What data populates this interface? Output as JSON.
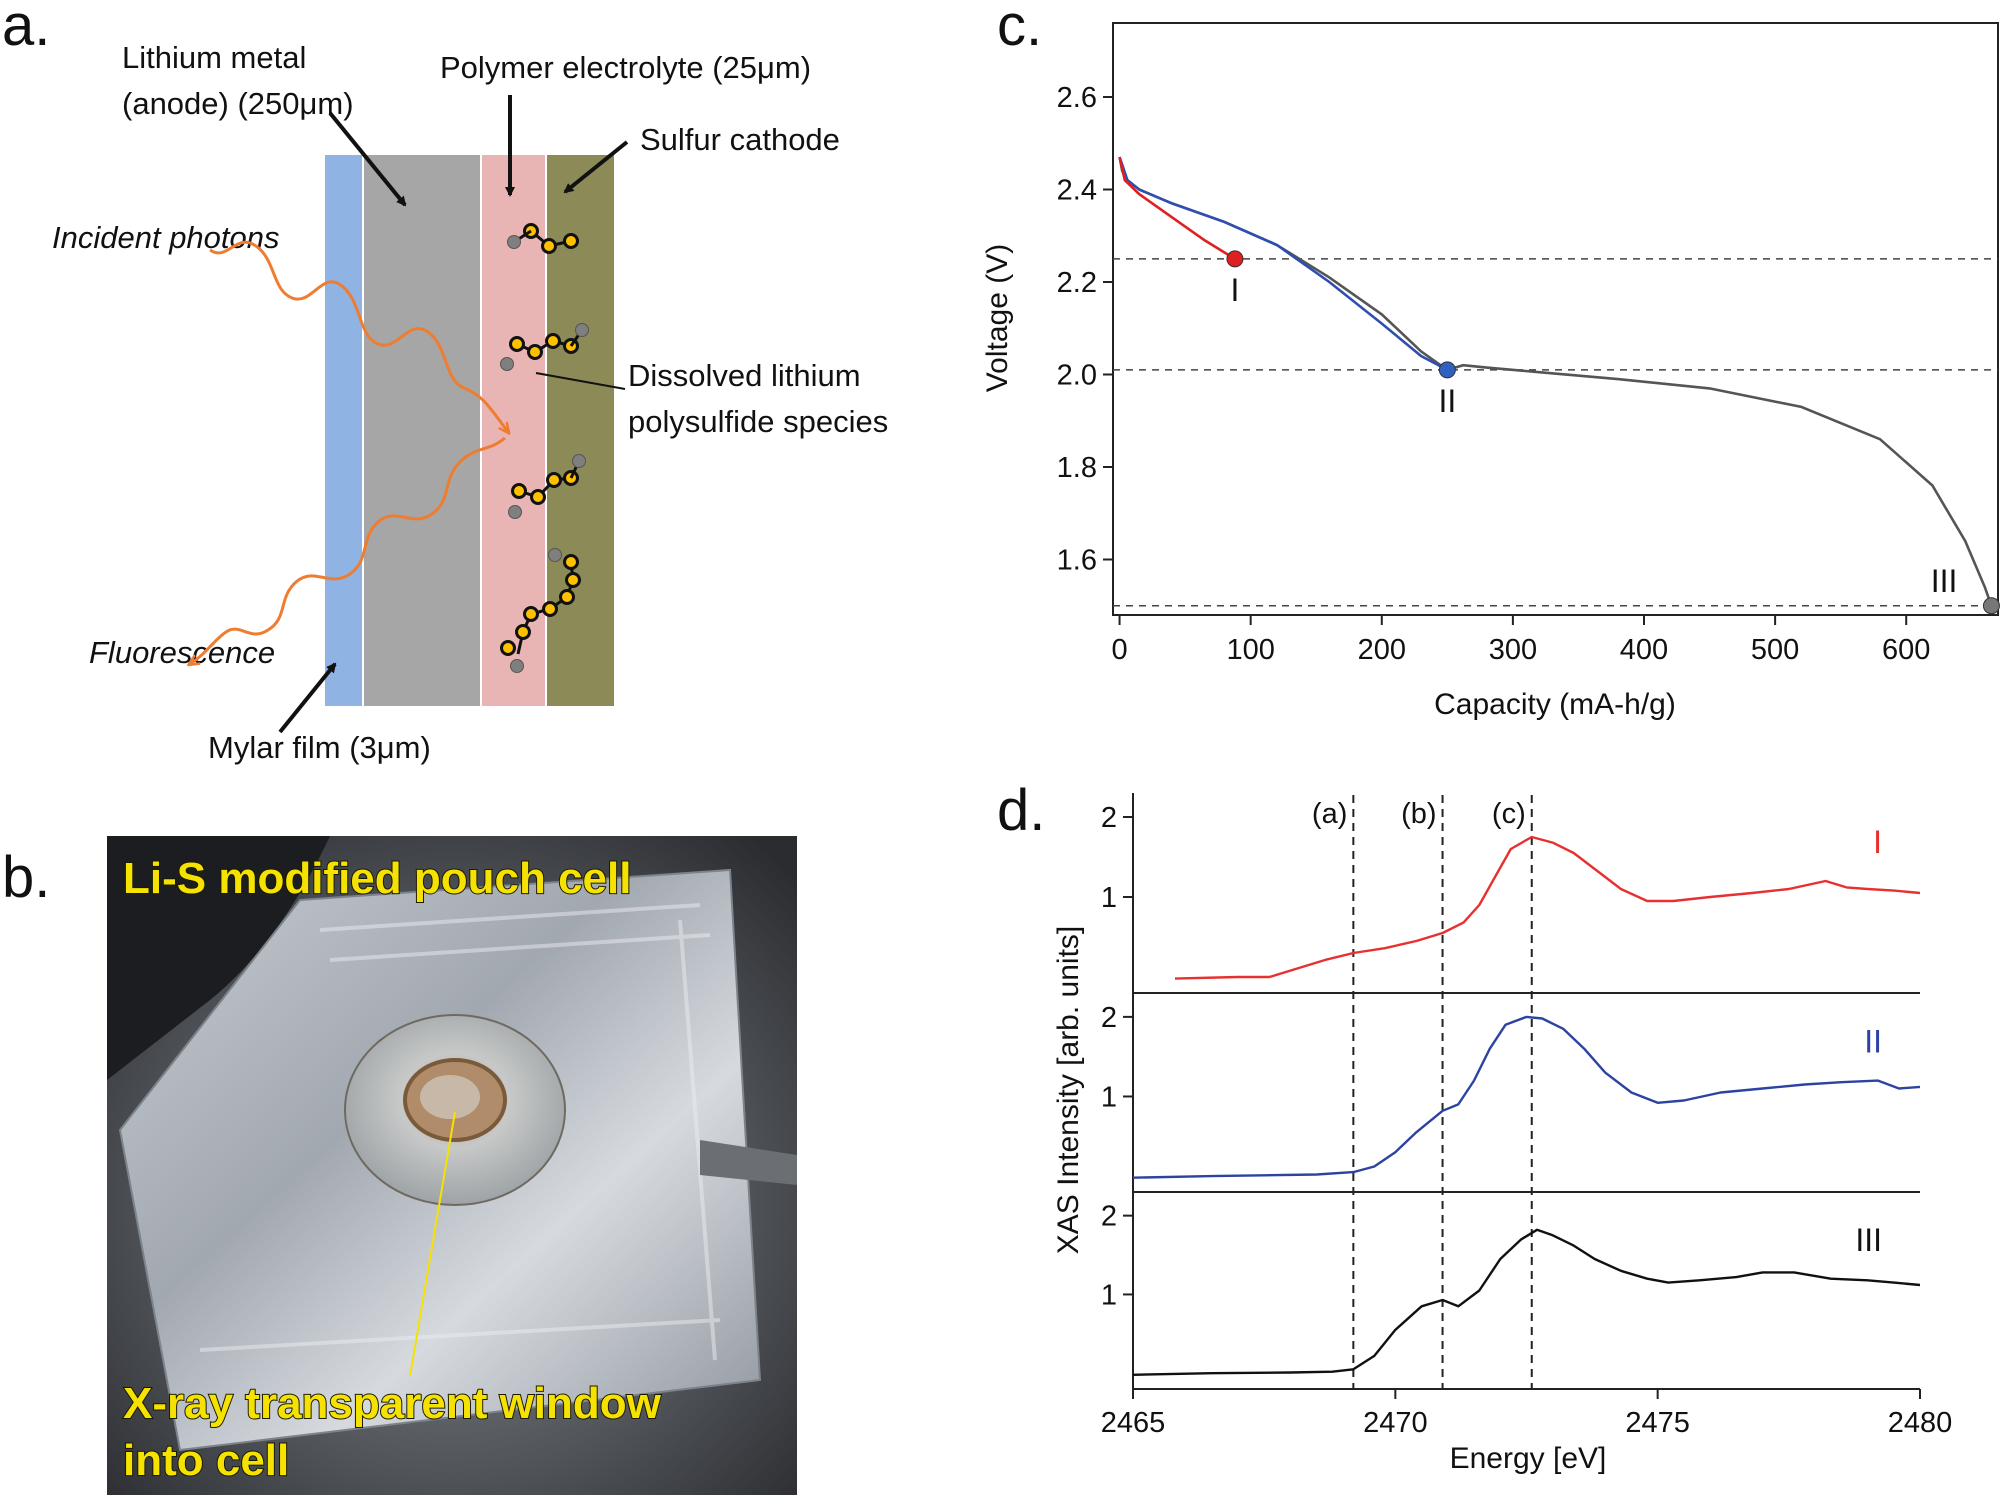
{
  "panel_a": {
    "letter": "a.",
    "anode_label_line1": "Lithium metal",
    "anode_label_line2": "(anode) (250μm)",
    "electrolyte_label": "Polymer electrolyte (25μm)",
    "cathode_label": "Sulfur cathode",
    "incident_label": "Incident photons",
    "polysulfide_line1": "Dissolved lithium",
    "polysulfide_line2": "polysulfide species",
    "fluorescence_label": "Fluorescence",
    "mylar_label": "Mylar film (3μm)",
    "colors": {
      "mylar": "#8fb4e3",
      "anode": "#a6a6a6",
      "electrolyte": "#e8b4b4",
      "cathode": "#8c8a57",
      "photon": "#ee7d31",
      "sulfur": "#ffc000",
      "lithium": "#7f7f7f"
    }
  },
  "panel_b": {
    "letter": "b.",
    "title": "Li-S modified pouch cell",
    "window_line1": "X-ray transparent window",
    "window_line2": "into cell"
  },
  "chart_data": [
    {
      "panel": "c.",
      "type": "line",
      "xlabel": "Capacity (mA-h/g)",
      "ylabel": "Voltage (V)",
      "xlim": [
        -5,
        670
      ],
      "ylim": [
        1.48,
        2.76
      ],
      "xticks": [
        "0",
        "100",
        "200",
        "300",
        "400",
        "500",
        "600"
      ],
      "yticks": [
        "1.6",
        "1.8",
        "2.0",
        "2.2",
        "2.4",
        "2.6"
      ],
      "reference_lines_y": [
        2.25,
        2.01,
        1.5
      ],
      "series": [
        {
          "color": "#555555",
          "x": [
            0,
            2,
            6,
            15,
            40,
            80,
            120,
            160,
            200,
            230,
            250,
            262,
            280,
            320,
            380,
            450,
            520,
            580,
            620,
            645,
            660,
            665
          ],
          "y": [
            2.47,
            2.44,
            2.42,
            2.4,
            2.37,
            2.33,
            2.28,
            2.21,
            2.13,
            2.05,
            2.01,
            2.02,
            2.015,
            2.005,
            1.99,
            1.97,
            1.93,
            1.86,
            1.76,
            1.64,
            1.54,
            1.5
          ]
        },
        {
          "color": "#2f4fb0",
          "x": [
            0,
            6,
            15,
            40,
            80,
            120,
            160,
            200,
            230,
            250
          ],
          "y": [
            2.47,
            2.42,
            2.4,
            2.37,
            2.33,
            2.28,
            2.2,
            2.11,
            2.04,
            2.01
          ]
        },
        {
          "color": "#e02020",
          "x": [
            0,
            4,
            15,
            40,
            65,
            88
          ],
          "y": [
            2.47,
            2.42,
            2.39,
            2.34,
            2.29,
            2.25
          ]
        }
      ],
      "points": [
        {
          "label": "I",
          "x": 88,
          "y": 2.25,
          "color": "#e02020"
        },
        {
          "label": "II",
          "x": 250,
          "y": 2.01,
          "color": "#3060c0"
        },
        {
          "label": "III",
          "x": 665,
          "y": 1.5,
          "color": "#777777"
        }
      ]
    },
    {
      "panel": "d.",
      "type": "line",
      "xlabel": "Energy [eV]",
      "ylabel": "XAS Intensity [arb. units]",
      "xlim": [
        2465,
        2480
      ],
      "xticks": [
        "2465",
        "2470",
        "2475",
        "2480"
      ],
      "yticks": [
        "1",
        "2"
      ],
      "sub_ylim": [
        -0.2,
        2.3
      ],
      "reference_lines_x": [
        2469.2,
        2470.9,
        2472.6
      ],
      "reference_labels": [
        "(a)",
        "(b)",
        "(c)"
      ],
      "series": [
        {
          "name": "I",
          "color": "#e83030",
          "x": [
            2465.8,
            2467.0,
            2467.6,
            2468.2,
            2468.7,
            2469.2,
            2469.8,
            2470.4,
            2470.9,
            2471.3,
            2471.6,
            2471.9,
            2472.2,
            2472.6,
            2473.0,
            2473.4,
            2473.8,
            2474.3,
            2474.8,
            2475.3,
            2476.0,
            2476.8,
            2477.5,
            2478.2,
            2478.6,
            2479.0,
            2479.5,
            2480.0
          ],
          "y": [
            -0.02,
            0.0,
            0.0,
            0.12,
            0.22,
            0.3,
            0.36,
            0.45,
            0.55,
            0.68,
            0.9,
            1.25,
            1.6,
            1.75,
            1.68,
            1.55,
            1.35,
            1.1,
            0.95,
            0.95,
            1.0,
            1.05,
            1.1,
            1.2,
            1.12,
            1.1,
            1.08,
            1.05
          ]
        },
        {
          "name": "II",
          "color": "#2d43a0",
          "x": [
            2465.0,
            2466.5,
            2467.5,
            2468.5,
            2469.2,
            2469.6,
            2470.0,
            2470.4,
            2470.9,
            2471.2,
            2471.5,
            2471.8,
            2472.1,
            2472.5,
            2472.8,
            2473.2,
            2473.6,
            2474.0,
            2474.5,
            2475.0,
            2475.5,
            2476.2,
            2477.0,
            2477.8,
            2478.5,
            2479.2,
            2479.6,
            2480.0
          ],
          "y": [
            -0.02,
            0.0,
            0.01,
            0.02,
            0.05,
            0.12,
            0.3,
            0.55,
            0.82,
            0.9,
            1.2,
            1.6,
            1.9,
            2.0,
            1.98,
            1.85,
            1.6,
            1.3,
            1.05,
            0.92,
            0.95,
            1.05,
            1.1,
            1.15,
            1.18,
            1.2,
            1.1,
            1.12
          ]
        },
        {
          "name": "III",
          "color": "#111111",
          "x": [
            2465.0,
            2466.5,
            2468.0,
            2468.8,
            2469.2,
            2469.6,
            2470.0,
            2470.5,
            2470.9,
            2471.2,
            2471.6,
            2472.0,
            2472.4,
            2472.7,
            2473.0,
            2473.4,
            2473.8,
            2474.3,
            2474.8,
            2475.2,
            2475.8,
            2476.5,
            2477.0,
            2477.6,
            2478.3,
            2479.0,
            2479.5,
            2480.0
          ],
          "y": [
            -0.02,
            0.0,
            0.01,
            0.02,
            0.05,
            0.22,
            0.55,
            0.85,
            0.93,
            0.85,
            1.05,
            1.45,
            1.7,
            1.82,
            1.75,
            1.62,
            1.45,
            1.3,
            1.2,
            1.15,
            1.18,
            1.22,
            1.28,
            1.28,
            1.2,
            1.18,
            1.15,
            1.12
          ]
        }
      ]
    }
  ]
}
